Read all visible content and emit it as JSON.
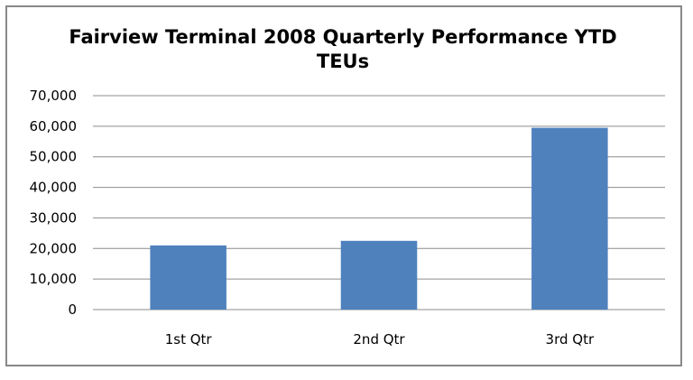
{
  "chart_data": {
    "type": "bar",
    "title_lines": [
      "Fairview Terminal 2008 Quarterly Performance YTD",
      "TEUs"
    ],
    "categories": [
      "1st Qtr",
      "2nd Qtr",
      "3rd Qtr"
    ],
    "values": [
      21000,
      22500,
      59500
    ],
    "ylim": [
      0,
      70000
    ],
    "yticks": [
      0,
      10000,
      20000,
      30000,
      40000,
      50000,
      60000,
      70000
    ],
    "ytick_labels": [
      "0",
      "10,000",
      "20,000",
      "30,000",
      "40,000",
      "50,000",
      "60,000",
      "70,000"
    ],
    "grid": true,
    "legend": "none",
    "bar_color": "#4F81BD",
    "grid_color": "#8C8C8C"
  }
}
